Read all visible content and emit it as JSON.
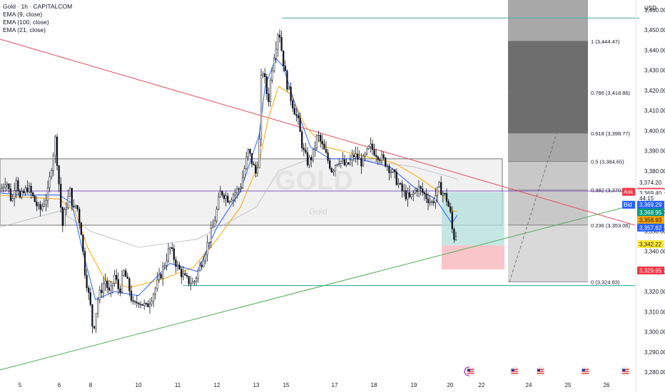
{
  "legend": {
    "symbol": "Gold · 1h · CAPITALCOM",
    "ema1": "EMA (9, close)",
    "ema2": "EMA (100, close)",
    "ema3": "EMA (21, close)"
  },
  "currency": "USD",
  "watermark": {
    "big": "GOLD",
    "small": "Gold"
  },
  "chart_data": {
    "type": "candlestick",
    "ylim": [
      3276,
      3468
    ],
    "y_ticks": [
      3280,
      3290,
      3300,
      3310,
      3320,
      3330,
      3340,
      3350,
      3360,
      3370,
      3380,
      3390,
      3400,
      3410,
      3420,
      3430,
      3440,
      3450,
      3460
    ],
    "y_tick_labels": [
      "3,280.00",
      "3,290.00",
      "3,300.00",
      "3,310.00",
      "3,320.00",
      "3,330.00",
      "3,340.00",
      "3,350.00",
      "3,360.00",
      "3,370.00",
      "3,380.00",
      "3,390.00",
      "3,400.00",
      "3,410.00",
      "3,420.00",
      "3,430.00",
      "3,440.00",
      "3,450.00",
      "3,460.00"
    ],
    "x_ticks": [
      {
        "label": "5",
        "day": 5
      },
      {
        "label": "6",
        "day": 6
      },
      {
        "label": "8",
        "day": 8
      },
      {
        "label": "10",
        "day": 10
      },
      {
        "label": "11",
        "day": 11
      },
      {
        "label": "12",
        "day": 12
      },
      {
        "label": "13",
        "day": 13
      },
      {
        "label": "15",
        "day": 15
      },
      {
        "label": "17",
        "day": 17
      },
      {
        "label": "18",
        "day": 18
      },
      {
        "label": "19",
        "day": 19
      },
      {
        "label": "20",
        "day": 20
      },
      {
        "label": "22",
        "day": 22
      },
      {
        "label": "24",
        "day": 24
      },
      {
        "label": "25",
        "day": 25
      },
      {
        "label": "26",
        "day": 26
      }
    ],
    "price_path": [
      [
        4.0,
        3370
      ],
      [
        4.3,
        3376
      ],
      [
        4.6,
        3364
      ],
      [
        4.8,
        3378
      ],
      [
        5.0,
        3366
      ],
      [
        5.2,
        3372
      ],
      [
        5.5,
        3360
      ],
      [
        5.7,
        3368
      ],
      [
        5.9,
        3396
      ],
      [
        6.0,
        3372
      ],
      [
        6.2,
        3352
      ],
      [
        6.4,
        3362
      ],
      [
        6.7,
        3370
      ],
      [
        6.9,
        3360
      ],
      [
        7.1,
        3364
      ],
      [
        7.4,
        3350
      ],
      [
        7.6,
        3332
      ],
      [
        7.8,
        3322
      ],
      [
        8.0,
        3312
      ],
      [
        8.1,
        3300
      ],
      [
        8.3,
        3316
      ],
      [
        8.6,
        3326
      ],
      [
        8.8,
        3318
      ],
      [
        9.0,
        3328
      ],
      [
        9.2,
        3320
      ],
      [
        9.4,
        3330
      ],
      [
        9.6,
        3322
      ],
      [
        9.8,
        3312
      ],
      [
        10.0,
        3316
      ],
      [
        10.2,
        3312
      ],
      [
        10.4,
        3320
      ],
      [
        10.6,
        3330
      ],
      [
        10.8,
        3342
      ],
      [
        11.0,
        3332
      ],
      [
        11.2,
        3326
      ],
      [
        11.4,
        3324
      ],
      [
        11.6,
        3334
      ],
      [
        11.9,
        3352
      ],
      [
        12.1,
        3370
      ],
      [
        12.3,
        3366
      ],
      [
        12.6,
        3372
      ],
      [
        12.8,
        3390
      ],
      [
        13.0,
        3378
      ],
      [
        13.2,
        3392
      ],
      [
        13.3,
        3422
      ],
      [
        13.4,
        3432
      ],
      [
        13.6,
        3424
      ],
      [
        13.8,
        3414
      ],
      [
        14.0,
        3428
      ],
      [
        14.2,
        3438
      ],
      [
        14.4,
        3446
      ],
      [
        14.5,
        3452
      ],
      [
        14.7,
        3440
      ],
      [
        14.9,
        3430
      ],
      [
        15.1,
        3420
      ],
      [
        15.3,
        3412
      ],
      [
        15.5,
        3404
      ],
      [
        15.7,
        3390
      ],
      [
        15.9,
        3384
      ],
      [
        16.1,
        3388
      ],
      [
        16.3,
        3398
      ],
      [
        16.5,
        3392
      ],
      [
        16.7,
        3386
      ],
      [
        16.9,
        3380
      ],
      [
        17.1,
        3386
      ],
      [
        17.3,
        3382
      ],
      [
        17.5,
        3388
      ],
      [
        17.7,
        3384
      ],
      [
        17.9,
        3392
      ],
      [
        18.1,
        3388
      ],
      [
        18.3,
        3384
      ],
      [
        18.5,
        3378
      ],
      [
        18.7,
        3370
      ],
      [
        18.9,
        3366
      ],
      [
        19.1,
        3372
      ],
      [
        19.3,
        3368
      ],
      [
        19.5,
        3364
      ],
      [
        19.7,
        3372
      ],
      [
        19.9,
        3366
      ],
      [
        20.1,
        3352
      ],
      [
        20.2,
        3348
      ],
      [
        20.3,
        3346
      ],
      [
        20.4,
        3350
      ],
      [
        20.45,
        3370
      ]
    ],
    "ema_fast_path": [
      [
        4.0,
        3369
      ],
      [
        5.0,
        3368
      ],
      [
        6.0,
        3368
      ],
      [
        6.8,
        3364
      ],
      [
        7.5,
        3340
      ],
      [
        8.2,
        3316
      ],
      [
        9.0,
        3320
      ],
      [
        10.0,
        3318
      ],
      [
        10.8,
        3334
      ],
      [
        11.5,
        3330
      ],
      [
        12.0,
        3352
      ],
      [
        12.6,
        3370
      ],
      [
        13.2,
        3398
      ],
      [
        13.6,
        3422
      ],
      [
        14.3,
        3436
      ],
      [
        14.8,
        3432
      ],
      [
        15.4,
        3412
      ],
      [
        16.0,
        3392
      ],
      [
        16.8,
        3386
      ],
      [
        17.6,
        3386
      ],
      [
        18.4,
        3382
      ],
      [
        19.0,
        3372
      ],
      [
        19.6,
        3366
      ],
      [
        20.1,
        3354
      ],
      [
        20.45,
        3358
      ]
    ],
    "ema_mid_path": [
      [
        4.0,
        3368
      ],
      [
        5.0,
        3367
      ],
      [
        6.0,
        3366
      ],
      [
        7.0,
        3360
      ],
      [
        7.8,
        3342
      ],
      [
        8.6,
        3326
      ],
      [
        9.6,
        3322
      ],
      [
        10.6,
        3326
      ],
      [
        11.4,
        3332
      ],
      [
        12.0,
        3346
      ],
      [
        12.6,
        3362
      ],
      [
        13.2,
        3384
      ],
      [
        13.8,
        3406
      ],
      [
        14.5,
        3422
      ],
      [
        15.2,
        3418
      ],
      [
        15.8,
        3402
      ],
      [
        16.6,
        3392
      ],
      [
        17.6,
        3388
      ],
      [
        18.5,
        3384
      ],
      [
        19.2,
        3376
      ],
      [
        19.8,
        3368
      ],
      [
        20.2,
        3360
      ],
      [
        20.45,
        3360
      ]
    ],
    "ema_slow_path": [
      [
        4.0,
        3352
      ],
      [
        6.0,
        3360
      ],
      [
        8.0,
        3350
      ],
      [
        10.0,
        3342
      ],
      [
        11.5,
        3346
      ],
      [
        13.0,
        3362
      ],
      [
        14.5,
        3380
      ],
      [
        16.0,
        3386
      ],
      [
        17.5,
        3386
      ],
      [
        19.0,
        3382
      ],
      [
        20.45,
        3376
      ]
    ],
    "levels": {
      "top_teal": 3456,
      "support_teal": 3323,
      "box_top": 3386,
      "box_bottom": 3353,
      "purple": 3370
    },
    "fib_levels": [
      {
        "ratio": "1",
        "price": 3444.47,
        "label": "1 (3,444.47)"
      },
      {
        "ratio": "0.786",
        "price": 3418.86,
        "label": "0.786 (3,418.86)"
      },
      {
        "ratio": "0.618",
        "price": 3398.77,
        "label": "0.618 (3,398.77)"
      },
      {
        "ratio": "0.5",
        "price": 3384.65,
        "label": "0.5 (3,384.65)"
      },
      {
        "ratio": "0.382",
        "price": 3370.53,
        "label": "0.382 (3,370.53)"
      },
      {
        "ratio": "0.236",
        "price": 3353.06,
        "label": "0.236 (3,353.06)"
      },
      {
        "ratio": "0",
        "price": 3324.83,
        "label": "0 (3,324.83)"
      }
    ],
    "trendlines": {
      "resistance": {
        "from": [
          3.6,
          3458
        ],
        "to": [
          26.6,
          3353
        ]
      },
      "support": {
        "from": [
          3.6,
          3278
        ],
        "to": [
          26.6,
          3364
        ]
      }
    },
    "position": {
      "day_start": 20.0,
      "day_end": 21.6,
      "entry": 3343.0,
      "target": 3369.4,
      "stop": 3331.0
    },
    "price_tags": [
      {
        "value": "3,374.20",
        "price": 3374.2,
        "bg": "#ffffff",
        "fg": "#131722"
      },
      {
        "value": "3,369.59",
        "price": 3369.59,
        "bg": "#f23645",
        "fg": "#ffffff",
        "side": "Ask"
      },
      {
        "value": "3,369.40",
        "price": 3369.0,
        "bg": "#ffffff",
        "fg": "#131722"
      },
      {
        "value": "44:15",
        "price": 3366.4,
        "bg": "#ffffff",
        "fg": "#131722"
      },
      {
        "value": "3,369.29",
        "price": 3363.2,
        "bg": "#2962ff",
        "fg": "#ffffff",
        "side": "Bid"
      },
      {
        "value": "3,368.95",
        "price": 3359.4,
        "bg": "#089981",
        "fg": "#ffffff"
      },
      {
        "value": "3,358.93",
        "price": 3355.6,
        "bg": "#f7a600",
        "fg": "#131722"
      },
      {
        "value": "3,357.62",
        "price": 3351.8,
        "bg": "#2962ff",
        "fg": "#ffffff"
      },
      {
        "value": "3,342.22",
        "price": 3343.6,
        "bg": "#ffeb3b",
        "fg": "#131722"
      },
      {
        "value": "3,329.65",
        "price": 3330.5,
        "bg": "#f23645",
        "fg": "#ffffff"
      }
    ]
  },
  "colors": {
    "candle": "#131722",
    "ema_fast": "#2962ff",
    "ema_mid": "#f7a600",
    "ema_slow": "#b2b5be",
    "resistance": "#e6455a",
    "support": "#4caf50",
    "teal": "#4db6ac",
    "purple": "#7e57c2",
    "box": "#e6e6e6",
    "fib_dark": "#6e6e6e",
    "fib_mid": "#a8a8a8",
    "fib_light": "#c8c8c8",
    "fib_lighter": "#d9d9d9"
  },
  "event_icons": [
    {
      "name": "lightning-event-icon",
      "day": 20.05,
      "kind": "lightning"
    },
    {
      "name": "us-flag-event-icon",
      "day": 21.3,
      "kind": "flag"
    },
    {
      "name": "us-flag-event-icon",
      "day": 23.4,
      "kind": "flag"
    },
    {
      "name": "us-flag-event-icon",
      "day": 24.3,
      "kind": "flag"
    },
    {
      "name": "us-flag-event-icon",
      "day": 25.45,
      "kind": "flag"
    },
    {
      "name": "us-flag-event-icon",
      "day": 26.4,
      "kind": "flag"
    }
  ]
}
